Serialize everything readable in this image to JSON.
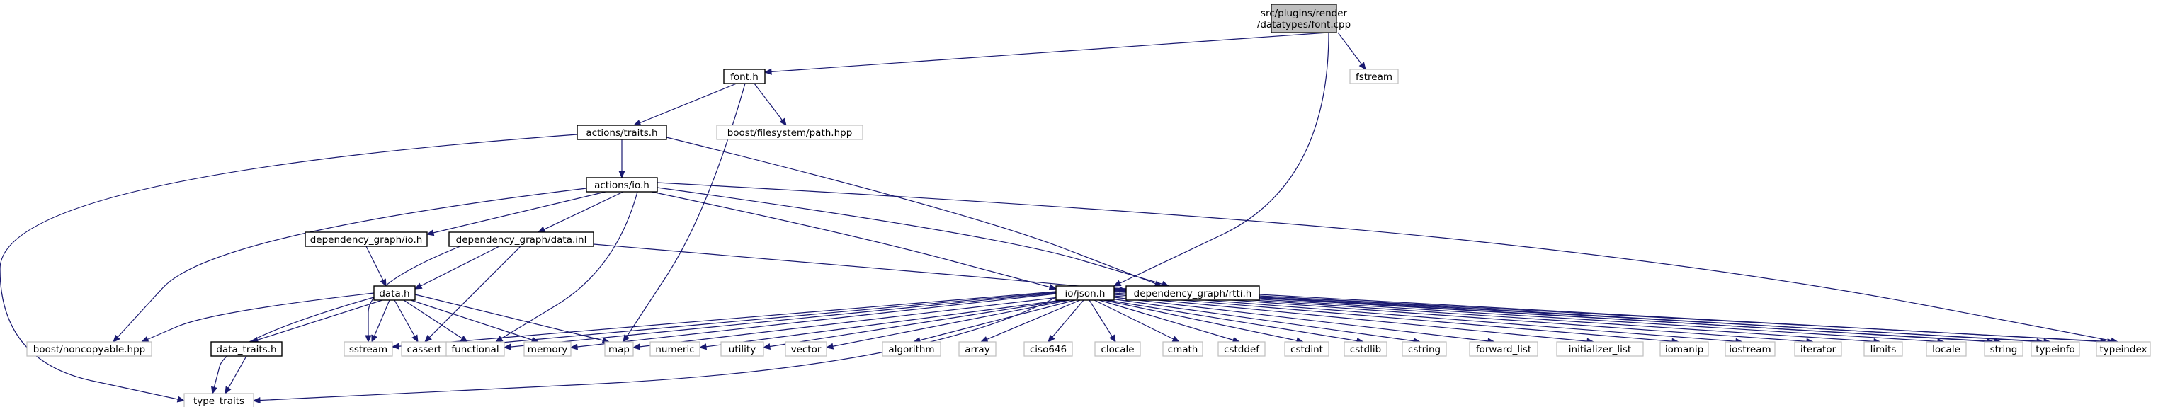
{
  "diagram": {
    "title_lines": [
      "src/plugins/render",
      "/datatypes/font.cpp"
    ],
    "nodes": {
      "root": [
        "src/plugins/render",
        "/datatypes/font.cpp"
      ],
      "font_h": "font.h",
      "fstream": "fstream",
      "actions_traits_h": "actions/traits.h",
      "boost_fs_path": "boost/filesystem/path.hpp",
      "actions_io_h": "actions/io.h",
      "dep_graph_io_h": "dependency_graph/io.h",
      "dep_graph_data_inl": "dependency_graph/data.inl",
      "io_json_h": "io/json.h",
      "dep_graph_rtti_h": "dependency_graph/rtti.h",
      "data_h": "data.h",
      "data_traits_h": "data_traits.h",
      "boost_noncopyable": "boost/noncopyable.hpp",
      "type_traits": "type_traits",
      "sstream": "sstream",
      "cassert": "cassert",
      "functional": "functional",
      "memory": "memory",
      "map": "map",
      "numeric": "numeric",
      "utility": "utility",
      "vector": "vector",
      "algorithm": "algorithm",
      "array": "array",
      "ciso646": "ciso646",
      "clocale": "clocale",
      "cmath": "cmath",
      "cstddef": "cstddef",
      "cstdint": "cstdint",
      "cstdlib": "cstdlib",
      "cstring": "cstring",
      "forward_list": "forward_list",
      "initializer_list": "initializer_list",
      "iomanip": "iomanip",
      "iostream": "iostream",
      "iterator": "iterator",
      "limits": "limits",
      "locale": "locale",
      "string": "string",
      "typeinfo": "typeinfo",
      "typeindex": "typeindex"
    },
    "colors": {
      "edge": "#191970",
      "root_fill": "#bfbfbf",
      "local_border": "#000000",
      "external_border": "#bfbfbf"
    }
  }
}
